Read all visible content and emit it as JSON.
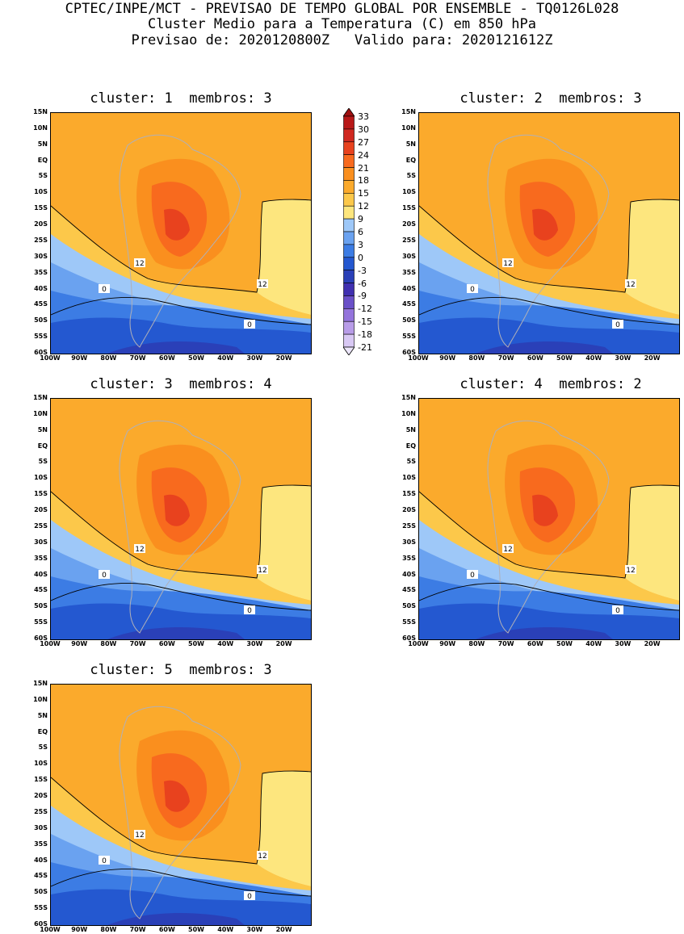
{
  "header": {
    "line1": "CPTEC/INPE/MCT - PREVISAO DE TEMPO GLOBAL POR ENSEMBLE - TQ0126L028",
    "line2": "Cluster Medio para a Temperatura (C) em 850 hPa",
    "line3": "Previsao de: 2020120800Z   Valido para: 2020121612Z"
  },
  "panels": [
    {
      "title": "cluster: 1  membros: 3"
    },
    {
      "title": "cluster: 2  membros: 3"
    },
    {
      "title": "cluster: 3  membros: 4"
    },
    {
      "title": "cluster: 4  membros: 2"
    },
    {
      "title": "cluster: 5  membros: 3"
    }
  ],
  "axes": {
    "lat_labels": [
      "15N",
      "10N",
      "5N",
      "EQ",
      "5S",
      "10S",
      "15S",
      "20S",
      "25S",
      "30S",
      "35S",
      "40S",
      "45S",
      "50S",
      "55S",
      "60S"
    ],
    "lon_labels": [
      "100W",
      "90W",
      "80W",
      "70W",
      "60W",
      "50W",
      "40W",
      "30W",
      "20W"
    ],
    "contour_labels": [
      "12",
      "0"
    ]
  },
  "colorbar": {
    "levels": [
      "33",
      "30",
      "27",
      "24",
      "21",
      "18",
      "15",
      "12",
      "9",
      "6",
      "3",
      "0",
      "-3",
      "-6",
      "-9",
      "-12",
      "-15",
      "-18",
      "-21"
    ],
    "colors": [
      "#a01010",
      "#b81818",
      "#d02820",
      "#e8421e",
      "#f86a1e",
      "#fa8f1e",
      "#fbaa2c",
      "#fcc84a",
      "#fde67e",
      "#9ec8f8",
      "#6aa2f0",
      "#3c7ce4",
      "#2458d0",
      "#2a40b8",
      "#4030b0",
      "#6a50c8",
      "#9474dc",
      "#b89ce8",
      "#d8c8f4",
      "#ece6fa"
    ]
  }
}
